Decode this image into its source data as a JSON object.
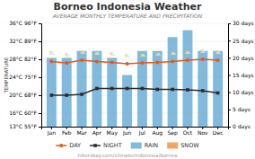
{
  "chart_data": {
    "type": "bar",
    "title": "Borneo Indonesia Weather",
    "subtitle": "AVERAGE MONTHLY TEMPERATURE AND PRECIPITATION",
    "footer": "hikersbay.com/climate/indonesia/borneo",
    "y_label": "TEMPERATURE",
    "categories": [
      "Jan",
      "Feb",
      "Mar",
      "Apr",
      "May",
      "Jun",
      "Jul",
      "Aug",
      "Sep",
      "Oct",
      "Nov",
      "Dec"
    ],
    "series": [
      {
        "name": "DAY",
        "type": "line",
        "color": "#e05c1a",
        "marker": "circle",
        "values": [
          27.5,
          27.2,
          27.8,
          27.5,
          27.3,
          27.0,
          27.2,
          27.3,
          27.5,
          27.8,
          28.0,
          27.8
        ]
      },
      {
        "name": "NIGHT",
        "type": "line",
        "color": "#2c2c2c",
        "marker": "square",
        "values": [
          20.0,
          20.0,
          20.2,
          21.5,
          21.5,
          21.5,
          21.5,
          21.3,
          21.3,
          21.2,
          21.0,
          20.5
        ]
      },
      {
        "name": "RAIN",
        "type": "bar",
        "axis": "y2",
        "color": "#6baed6",
        "values": [
          20,
          20,
          22,
          22,
          20,
          15,
          22,
          22,
          26,
          28,
          22,
          22
        ]
      },
      {
        "name": "SNOW",
        "type": "bar",
        "axis": "y2",
        "color": "#f4a460",
        "values": [
          null,
          null,
          null,
          null,
          null,
          null,
          null,
          null,
          null,
          null,
          null,
          null
        ]
      }
    ],
    "ylim": [
      13,
      36
    ],
    "yticks": [
      {
        "value": 13,
        "label": "13°C 55°F"
      },
      {
        "value": 16,
        "label": "16°C 60°F"
      },
      {
        "value": 20,
        "label": "20°C 68°F"
      },
      {
        "value": 24,
        "label": "24°C 75°F"
      },
      {
        "value": 28,
        "label": "28°C 82°F"
      },
      {
        "value": 32,
        "label": "32°C 89°F"
      },
      {
        "value": 36,
        "label": "36°C 96°F"
      }
    ],
    "y2lim": [
      0,
      30
    ],
    "y2ticks": [
      {
        "value": 0,
        "label": "0 days"
      },
      {
        "value": 5,
        "label": "5 days"
      },
      {
        "value": 10,
        "label": "10 days"
      },
      {
        "value": 15,
        "label": "15 days"
      },
      {
        "value": 20,
        "label": "20 days"
      },
      {
        "value": 25,
        "label": "25 days"
      },
      {
        "value": 30,
        "label": "30 days"
      }
    ],
    "grid": true,
    "legend": "bottom",
    "annotations": [
      {
        "text": "⛅",
        "x": "Jan",
        "y": 29
      },
      {
        "text": "⛅",
        "x": "Feb",
        "y": 28.7
      },
      {
        "text": "⛅",
        "x": "Mar",
        "y": 29.3
      },
      {
        "text": "⛅",
        "x": "Apr",
        "y": 29
      },
      {
        "text": "⛅",
        "x": "May",
        "y": 28.8
      },
      {
        "text": "⛅",
        "x": "Jun",
        "y": 28.5
      },
      {
        "text": "⛅",
        "x": "Jul",
        "y": 28.7
      },
      {
        "text": "⛅",
        "x": "Aug",
        "y": 28.8
      },
      {
        "text": "⛅",
        "x": "Sep",
        "y": 29
      },
      {
        "text": "⛅",
        "x": "Oct",
        "y": 29.3
      },
      {
        "text": "⛅",
        "x": "Nov",
        "y": 29.5
      },
      {
        "text": "⛅",
        "x": "Dec",
        "y": 29.3
      }
    ]
  }
}
